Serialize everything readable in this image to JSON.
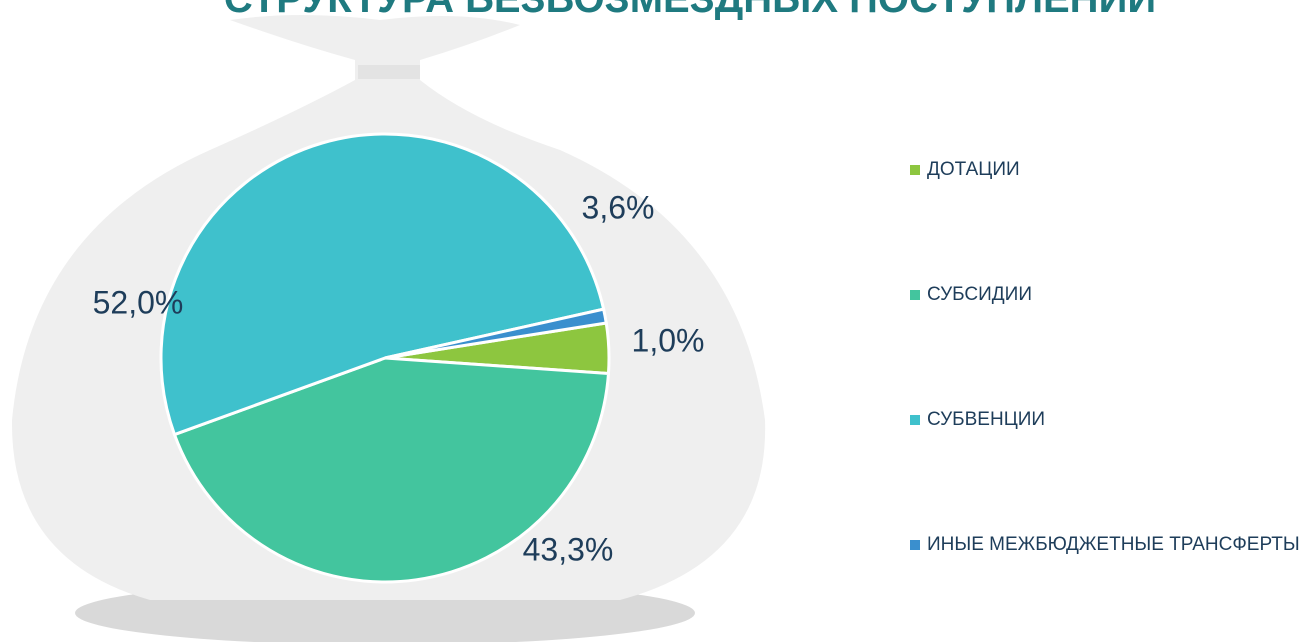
{
  "chart_data": {
    "type": "pie",
    "title": "СТРУКТУРА БЕЗВОЗМЕЗДНЫХ ПОСТУПЛЕНИЙ",
    "categories": [
      "ДОТАЦИИ",
      "СУБСИДИИ",
      "СУБВЕНЦИИ",
      "ИНЫЕ МЕЖБЮДЖЕТНЫЕ ТРАНСФЕРТЫ"
    ],
    "values": [
      3.6,
      43.3,
      52.0,
      1.0
    ],
    "value_labels": [
      "3,6%",
      "43,3%",
      "52,0%",
      "1,0%"
    ],
    "colors": [
      "#8dc63f",
      "#43c59e",
      "#3fc1cc",
      "#3a8fce"
    ],
    "legend": "right"
  }
}
